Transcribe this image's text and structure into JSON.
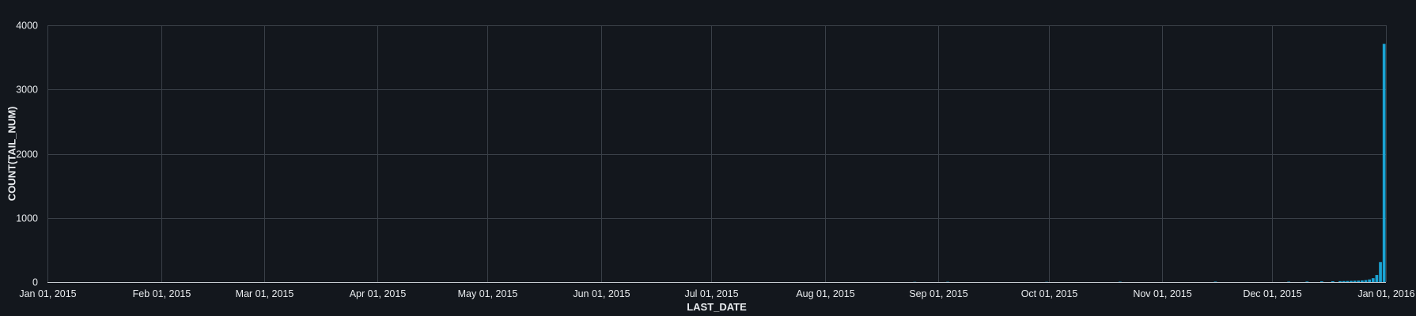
{
  "chart_data": {
    "type": "bar",
    "title": "",
    "xlabel": "LAST_DATE",
    "ylabel": "COUNT(TAIL_NUM)",
    "x_type": "date",
    "xlim": [
      "2015-01-01",
      "2016-01-01"
    ],
    "ylim": [
      0,
      4000
    ],
    "x_ticks": [
      "2015-01-01",
      "2015-02-01",
      "2015-03-01",
      "2015-04-01",
      "2015-05-01",
      "2015-06-01",
      "2015-07-01",
      "2015-08-01",
      "2015-09-01",
      "2015-10-01",
      "2015-11-01",
      "2015-12-01",
      "2016-01-01"
    ],
    "x_tick_labels": [
      "Jan 01, 2015",
      "Feb 01, 2015",
      "Mar 01, 2015",
      "Apr 01, 2015",
      "May 01, 2015",
      "Jun 01, 2015",
      "Jul 01, 2015",
      "Aug 01, 2015",
      "Sep 01, 2015",
      "Oct 01, 2015",
      "Nov 01, 2015",
      "Dec 01, 2015",
      "Jan 01, 2016"
    ],
    "y_ticks": [
      0,
      1000,
      2000,
      3000,
      4000
    ],
    "y_tick_labels": [
      "0",
      "1000",
      "2000",
      "3000",
      "4000"
    ],
    "grid": true,
    "color": "#1ba3d3",
    "series": [
      {
        "x": [
          "2015-08-25",
          "2015-09-03",
          "2015-09-30",
          "2015-10-20",
          "2015-11-15",
          "2015-12-05",
          "2015-12-10",
          "2015-12-14",
          "2015-12-17",
          "2015-12-19",
          "2015-12-20",
          "2015-12-21",
          "2015-12-22",
          "2015-12-23",
          "2015-12-24",
          "2015-12-25",
          "2015-12-26",
          "2015-12-27",
          "2015-12-28",
          "2015-12-29",
          "2015-12-30",
          "2015-12-31"
        ],
        "values": [
          3,
          4,
          3,
          5,
          6,
          6,
          8,
          10,
          12,
          14,
          15,
          16,
          18,
          20,
          22,
          25,
          30,
          40,
          60,
          110,
          310,
          3710
        ]
      }
    ]
  }
}
